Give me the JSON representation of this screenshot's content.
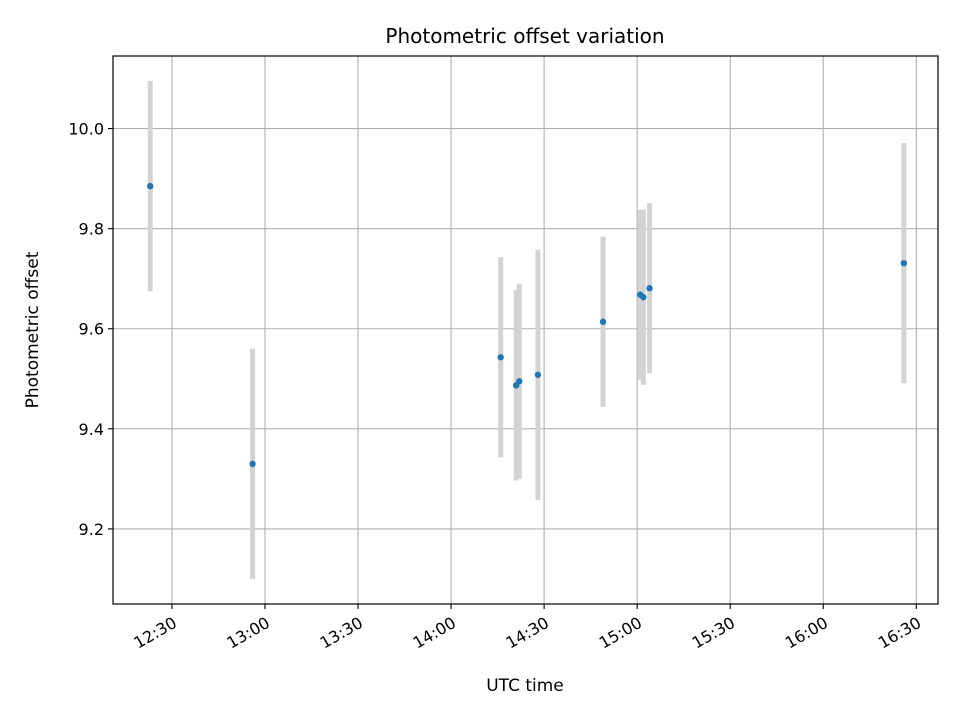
{
  "chart_data": {
    "type": "scatter",
    "title": "Photometric offset variation",
    "xlabel": "UTC time",
    "ylabel": "Photometric offset",
    "x_ticks": [
      "12:30",
      "13:00",
      "13:30",
      "14:00",
      "14:30",
      "15:00",
      "15:30",
      "16:00",
      "16:30"
    ],
    "y_ticks": [
      "9.2",
      "9.4",
      "9.6",
      "9.8",
      "10.0"
    ],
    "xlim": [
      "12:11",
      "16:37"
    ],
    "ylim": [
      9.05,
      10.145
    ],
    "grid": true,
    "colors": {
      "point": "#1f77b4",
      "errorbar": "#d3d3d3",
      "grid": "#b0b0b0"
    },
    "points": [
      {
        "x": "12:23",
        "y": 9.885,
        "err": 0.21
      },
      {
        "x": "12:56",
        "y": 9.33,
        "err": 0.23
      },
      {
        "x": "14:16",
        "y": 9.543,
        "err": 0.2
      },
      {
        "x": "14:21",
        "y": 9.487,
        "err": 0.19
      },
      {
        "x": "14:22",
        "y": 9.495,
        "err": 0.195
      },
      {
        "x": "14:28",
        "y": 9.508,
        "err": 0.25
      },
      {
        "x": "14:49",
        "y": 9.614,
        "err": 0.17
      },
      {
        "x": "15:01",
        "y": 9.668,
        "err": 0.17
      },
      {
        "x": "15:02",
        "y": 9.663,
        "err": 0.175
      },
      {
        "x": "15:04",
        "y": 9.681,
        "err": 0.17
      },
      {
        "x": "16:26",
        "y": 9.731,
        "err": 0.24
      }
    ]
  }
}
